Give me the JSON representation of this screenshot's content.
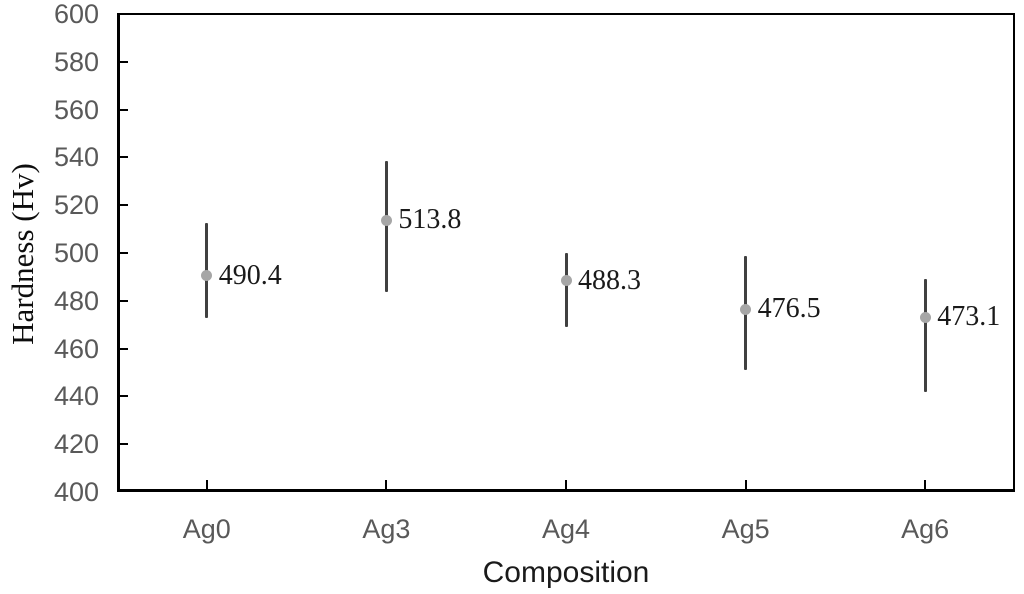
{
  "chart_data": {
    "type": "scatter",
    "title": "",
    "xlabel": "Composition",
    "ylabel": "Hardness (Hv)",
    "categories": [
      "Ag0",
      "Ag3",
      "Ag4",
      "Ag5",
      "Ag6"
    ],
    "series": [
      {
        "name": "Hardness",
        "values": [
          490.4,
          513.8,
          488.3,
          476.5,
          473.1
        ],
        "data_labels": [
          "490.4",
          "513.8",
          "488.3",
          "476.5",
          "473.1"
        ],
        "error_upper": [
          512.5,
          538.5,
          500.0,
          498.7,
          489.0
        ],
        "error_lower": [
          473.0,
          483.5,
          469.0,
          451.0,
          442.0
        ]
      }
    ],
    "ylim": [
      400,
      600
    ],
    "yticks": [
      400,
      420,
      440,
      460,
      480,
      500,
      520,
      540,
      560,
      580,
      600
    ],
    "grid": false,
    "legend_position": "none",
    "colors": {
      "marker": "#a6a6a6",
      "error_bar": "#404040",
      "axis_line": "#000000",
      "tick_label": "#595959",
      "data_label": "#1a1a1a"
    }
  }
}
